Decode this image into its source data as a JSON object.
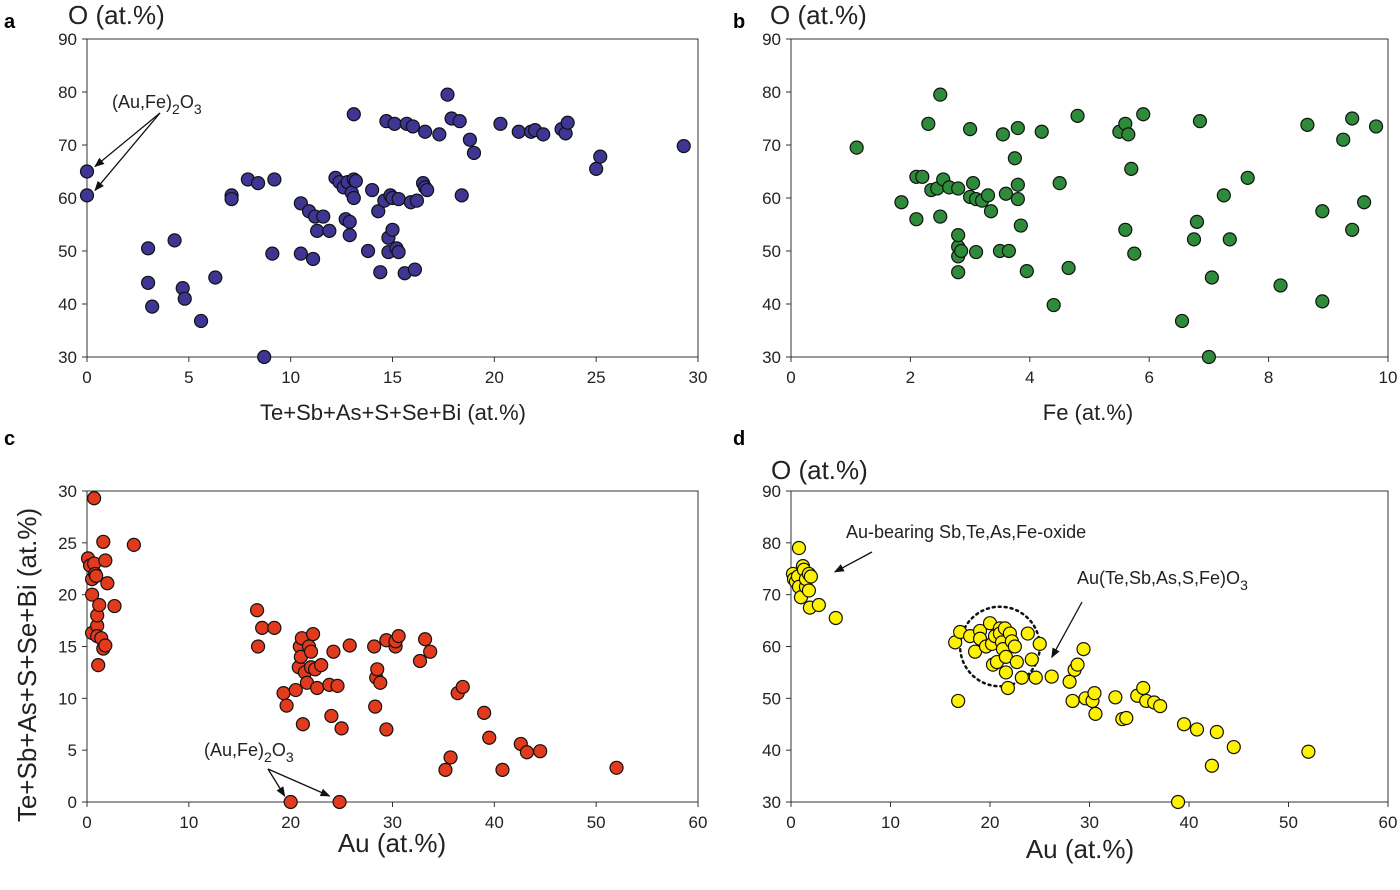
{
  "chart_data": [
    {
      "panel": "a",
      "type": "scatter",
      "title": "",
      "xlabel": "Te+Sb+As+S+Se+Bi (at.%)",
      "ylabel": "O (at.%)",
      "xlim": [
        0,
        30
      ],
      "ylim": [
        30,
        90
      ],
      "xticks": [
        0,
        5,
        10,
        15,
        20,
        25,
        30
      ],
      "yticks": [
        30,
        40,
        50,
        60,
        70,
        80,
        90
      ],
      "color": "#3f3593",
      "grid": false,
      "annotations": [
        {
          "text": "(Au,Fe)",
          "sub1": "2",
          "mid": "O",
          "sub2": "3",
          "points_to": [
            [
              0,
              65
            ],
            [
              0,
              60.5
            ]
          ]
        }
      ],
      "points": [
        [
          0,
          65
        ],
        [
          0,
          60.5
        ],
        [
          3,
          50.5
        ],
        [
          3,
          44
        ],
        [
          3.2,
          39.5
        ],
        [
          4.3,
          52
        ],
        [
          4.7,
          43
        ],
        [
          4.8,
          41
        ],
        [
          5.6,
          36.8
        ],
        [
          6.3,
          45
        ],
        [
          7.1,
          60.5
        ],
        [
          7.1,
          59.8
        ],
        [
          7.9,
          63.5
        ],
        [
          8.4,
          62.8
        ],
        [
          8.7,
          30
        ],
        [
          9.1,
          49.5
        ],
        [
          9.2,
          63.5
        ],
        [
          10.5,
          59
        ],
        [
          10.5,
          49.5
        ],
        [
          10.9,
          57.5
        ],
        [
          11.1,
          48.5
        ],
        [
          11.2,
          56.5
        ],
        [
          11.3,
          53.8
        ],
        [
          11.6,
          56.5
        ],
        [
          11.9,
          53.8
        ],
        [
          12.2,
          63.8
        ],
        [
          12.4,
          63
        ],
        [
          12.6,
          62
        ],
        [
          12.7,
          56
        ],
        [
          12.8,
          63
        ],
        [
          12.9,
          53
        ],
        [
          12.9,
          55.5
        ],
        [
          13,
          61
        ],
        [
          13.1,
          60
        ],
        [
          13.1,
          75.8
        ],
        [
          13.1,
          63.5
        ],
        [
          13.2,
          63.2
        ],
        [
          13.8,
          50
        ],
        [
          14,
          61.5
        ],
        [
          14.3,
          57.5
        ],
        [
          14.4,
          46
        ],
        [
          14.6,
          59.5
        ],
        [
          14.7,
          74.5
        ],
        [
          14.8,
          52.5
        ],
        [
          14.8,
          49.8
        ],
        [
          14.9,
          60.5
        ],
        [
          15,
          54
        ],
        [
          15,
          60
        ],
        [
          15.1,
          74
        ],
        [
          15.2,
          50.5
        ],
        [
          15.3,
          49.8
        ],
        [
          15.3,
          59.8
        ],
        [
          15.6,
          45.8
        ],
        [
          15.7,
          74
        ],
        [
          15.9,
          59.2
        ],
        [
          16,
          73.5
        ],
        [
          16.1,
          46.5
        ],
        [
          16.2,
          59.5
        ],
        [
          16.5,
          62.8
        ],
        [
          16.6,
          72.5
        ],
        [
          16.6,
          62
        ],
        [
          16.7,
          61.5
        ],
        [
          17.3,
          72
        ],
        [
          17.7,
          79.5
        ],
        [
          17.9,
          75
        ],
        [
          18.3,
          74.5
        ],
        [
          18.4,
          60.5
        ],
        [
          18.8,
          71
        ],
        [
          19,
          68.5
        ],
        [
          20.3,
          74
        ],
        [
          21.2,
          72.5
        ],
        [
          21.8,
          72.5
        ],
        [
          22,
          72.8
        ],
        [
          22.4,
          72
        ],
        [
          23.3,
          73
        ],
        [
          23.5,
          72.2
        ],
        [
          23.6,
          74.2
        ],
        [
          25,
          65.5
        ],
        [
          25.2,
          67.8
        ],
        [
          29.3,
          69.8
        ]
      ]
    },
    {
      "panel": "b",
      "type": "scatter",
      "title": "",
      "xlabel": "Fe (at.%)",
      "ylabel": "O (at.%)",
      "xlim": [
        0,
        10
      ],
      "ylim": [
        30,
        90
      ],
      "xticks": [
        0,
        2,
        4,
        6,
        8,
        10
      ],
      "yticks": [
        30,
        40,
        50,
        60,
        70,
        80,
        90
      ],
      "color": "#2e8b3a",
      "grid": false,
      "points": [
        [
          1.1,
          69.5
        ],
        [
          1.85,
          59.2
        ],
        [
          2.1,
          64
        ],
        [
          2.1,
          56
        ],
        [
          2.2,
          64
        ],
        [
          2.3,
          74
        ],
        [
          2.35,
          61.5
        ],
        [
          2.45,
          61.8
        ],
        [
          2.5,
          79.5
        ],
        [
          2.5,
          56.5
        ],
        [
          2.55,
          63.5
        ],
        [
          2.65,
          62
        ],
        [
          2.8,
          61.8
        ],
        [
          2.8,
          50.8
        ],
        [
          2.8,
          53
        ],
        [
          2.8,
          49
        ],
        [
          2.8,
          46
        ],
        [
          2.85,
          50
        ],
        [
          3,
          73
        ],
        [
          3,
          60.2
        ],
        [
          3.05,
          62.8
        ],
        [
          3.1,
          59.8
        ],
        [
          3.1,
          49.8
        ],
        [
          3.2,
          59.5
        ],
        [
          3.3,
          60.5
        ],
        [
          3.35,
          57.5
        ],
        [
          3.5,
          50
        ],
        [
          3.55,
          72
        ],
        [
          3.6,
          60.8
        ],
        [
          3.65,
          50
        ],
        [
          3.75,
          67.5
        ],
        [
          3.8,
          73.2
        ],
        [
          3.8,
          62.5
        ],
        [
          3.8,
          59.8
        ],
        [
          3.85,
          54.8
        ],
        [
          3.95,
          46.2
        ],
        [
          4.2,
          72.5
        ],
        [
          4.4,
          39.8
        ],
        [
          4.5,
          62.8
        ],
        [
          4.65,
          46.8
        ],
        [
          4.8,
          75.5
        ],
        [
          5.5,
          72.5
        ],
        [
          5.6,
          54
        ],
        [
          5.6,
          74
        ],
        [
          5.65,
          72
        ],
        [
          5.7,
          65.5
        ],
        [
          5.75,
          49.5
        ],
        [
          5.9,
          75.8
        ],
        [
          6.55,
          36.8
        ],
        [
          6.85,
          74.5
        ],
        [
          7.0,
          30
        ],
        [
          7.05,
          45
        ],
        [
          6.75,
          52.2
        ],
        [
          6.8,
          55.5
        ],
        [
          7.25,
          60.5
        ],
        [
          7.35,
          52.2
        ],
        [
          7.65,
          63.8
        ],
        [
          8.2,
          43.5
        ],
        [
          8.65,
          73.8
        ],
        [
          8.9,
          40.5
        ],
        [
          8.9,
          57.5
        ],
        [
          9.25,
          71
        ],
        [
          9.4,
          75
        ],
        [
          9.4,
          54
        ],
        [
          9.6,
          59.2
        ],
        [
          9.8,
          73.5
        ]
      ]
    },
    {
      "panel": "c",
      "type": "scatter",
      "title": "",
      "xlabel": "Au (at.%)",
      "ylabel": "Te+Sb+As+S+Se+Bi (at.%)",
      "xlim": [
        0,
        60
      ],
      "ylim": [
        0,
        30
      ],
      "xticks": [
        0,
        10,
        20,
        30,
        40,
        50,
        60
      ],
      "yticks": [
        0,
        5,
        10,
        15,
        20,
        25,
        30
      ],
      "color": "#e23a1d",
      "grid": false,
      "annotations": [
        {
          "text": "(Au,Fe)",
          "sub1": "2",
          "mid": "O",
          "sub2": "3",
          "points_to": [
            [
              20,
              0
            ],
            [
              24.8,
              0
            ]
          ]
        }
      ],
      "points": [
        [
          0.1,
          23.5
        ],
        [
          0.3,
          22.8
        ],
        [
          0.5,
          21.5
        ],
        [
          0.5,
          20
        ],
        [
          0.5,
          16.3
        ],
        [
          0.7,
          29.3
        ],
        [
          0.7,
          23
        ],
        [
          0.8,
          22
        ],
        [
          0.9,
          21.8
        ],
        [
          1,
          17
        ],
        [
          1,
          16
        ],
        [
          1,
          18
        ],
        [
          1.1,
          13.2
        ],
        [
          1.2,
          19
        ],
        [
          1.4,
          15.8
        ],
        [
          1.6,
          25.1
        ],
        [
          1.6,
          14.8
        ],
        [
          1.8,
          23.3
        ],
        [
          1.8,
          15.1
        ],
        [
          2,
          21.1
        ],
        [
          2.7,
          18.9
        ],
        [
          4.6,
          24.8
        ],
        [
          16.7,
          18.5
        ],
        [
          16.8,
          15
        ],
        [
          17.2,
          16.8
        ],
        [
          18.4,
          16.8
        ],
        [
          19.3,
          10.5
        ],
        [
          19.6,
          9.3
        ],
        [
          20,
          0
        ],
        [
          20.5,
          10.8
        ],
        [
          20.8,
          13
        ],
        [
          20.9,
          15
        ],
        [
          21,
          14
        ],
        [
          21.1,
          15.8
        ],
        [
          21.2,
          7.5
        ],
        [
          21.4,
          12.5
        ],
        [
          21.6,
          11.5
        ],
        [
          21.8,
          15
        ],
        [
          22,
          14.5
        ],
        [
          22,
          13
        ],
        [
          22.2,
          16.2
        ],
        [
          22.4,
          12.8
        ],
        [
          22.6,
          11
        ],
        [
          23,
          13.2
        ],
        [
          23.8,
          11.3
        ],
        [
          24,
          8.3
        ],
        [
          24.2,
          14.5
        ],
        [
          24.6,
          11.2
        ],
        [
          24.8,
          0
        ],
        [
          25,
          7.1
        ],
        [
          25.8,
          15.1
        ],
        [
          28.2,
          15
        ],
        [
          28.3,
          9.2
        ],
        [
          28.4,
          12
        ],
        [
          28.5,
          12.8
        ],
        [
          28.8,
          11.5
        ],
        [
          29.4,
          15.6
        ],
        [
          29.4,
          7
        ],
        [
          30.3,
          15
        ],
        [
          30.3,
          15.5
        ],
        [
          30.6,
          16
        ],
        [
          32.7,
          13.6
        ],
        [
          33.2,
          15.7
        ],
        [
          33.7,
          14.5
        ],
        [
          35.2,
          3.1
        ],
        [
          35.7,
          4.3
        ],
        [
          36.4,
          10.5
        ],
        [
          36.9,
          11.1
        ],
        [
          39,
          8.6
        ],
        [
          39.5,
          6.2
        ],
        [
          40.8,
          3.1
        ],
        [
          42.6,
          5.6
        ],
        [
          43.2,
          4.8
        ],
        [
          44.5,
          4.9
        ],
        [
          52,
          3.3
        ]
      ]
    },
    {
      "panel": "d",
      "type": "scatter",
      "title": "",
      "xlabel": "Au (at.%)",
      "ylabel": "O (at.%)",
      "xlim": [
        0,
        60
      ],
      "ylim": [
        30,
        90
      ],
      "xticks": [
        0,
        10,
        20,
        30,
        40,
        50,
        60
      ],
      "yticks": [
        30,
        40,
        50,
        60,
        70,
        80,
        90
      ],
      "color": "#fff200",
      "grid": false,
      "annotations": [
        {
          "text": "Au-bearing Sb,Te,As,Fe-oxide",
          "points_to": [
            [
              4,
              74
            ]
          ]
        },
        {
          "text": "Au(Te,Sb,As,S,Fe)O",
          "sub": "3",
          "points_to": [
            [
              25,
              61
            ]
          ]
        }
      ],
      "circle": {
        "cx": 21,
        "cy": 60,
        "r": 4,
        "style": "dotted"
      },
      "points": [
        [
          0.2,
          74
        ],
        [
          0.3,
          73
        ],
        [
          0.5,
          72.5
        ],
        [
          0.7,
          73.5
        ],
        [
          0.8,
          71.5
        ],
        [
          0.8,
          79
        ],
        [
          1,
          69.5
        ],
        [
          1.2,
          75.5
        ],
        [
          1.3,
          74.8
        ],
        [
          1.5,
          71.5
        ],
        [
          1.5,
          73
        ],
        [
          1.8,
          74
        ],
        [
          1.8,
          70.8
        ],
        [
          1.9,
          67.5
        ],
        [
          2,
          73.5
        ],
        [
          2.8,
          68
        ],
        [
          4.5,
          65.5
        ],
        [
          16.5,
          60.8
        ],
        [
          16.8,
          49.5
        ],
        [
          17,
          62.8
        ],
        [
          18,
          62
        ],
        [
          18.5,
          59
        ],
        [
          19,
          63
        ],
        [
          19,
          61.5
        ],
        [
          19.6,
          60
        ],
        [
          20,
          64.5
        ],
        [
          20.2,
          60.5
        ],
        [
          20.3,
          56.5
        ],
        [
          20.5,
          62
        ],
        [
          20.7,
          57
        ],
        [
          21,
          63.5
        ],
        [
          21,
          62.5
        ],
        [
          21.2,
          60.8
        ],
        [
          21.3,
          59.5
        ],
        [
          21.5,
          63.5
        ],
        [
          21.6,
          58
        ],
        [
          21.6,
          55
        ],
        [
          21.8,
          52
        ],
        [
          22,
          62.5
        ],
        [
          22.2,
          61
        ],
        [
          22.5,
          60
        ],
        [
          22.7,
          57
        ],
        [
          23.2,
          54
        ],
        [
          23.8,
          62.5
        ],
        [
          24.2,
          57.5
        ],
        [
          24.6,
          54
        ],
        [
          25,
          60.5
        ],
        [
          26.2,
          54.2
        ],
        [
          28,
          53.2
        ],
        [
          28.3,
          49.5
        ],
        [
          28.5,
          55.5
        ],
        [
          28.8,
          56.5
        ],
        [
          29.4,
          59.5
        ],
        [
          29.6,
          50
        ],
        [
          30.3,
          49.5
        ],
        [
          30.5,
          51
        ],
        [
          30.6,
          47
        ],
        [
          32.6,
          50.2
        ],
        [
          33.3,
          46
        ],
        [
          33.7,
          46.2
        ],
        [
          34.8,
          50.5
        ],
        [
          35.4,
          52
        ],
        [
          35.7,
          49.5
        ],
        [
          36.5,
          49.2
        ],
        [
          37.1,
          48.5
        ],
        [
          38.9,
          30
        ],
        [
          39.5,
          45
        ],
        [
          40.8,
          44
        ],
        [
          42.3,
          37
        ],
        [
          42.8,
          43.5
        ],
        [
          44.5,
          40.6
        ],
        [
          52,
          39.7
        ]
      ]
    }
  ]
}
